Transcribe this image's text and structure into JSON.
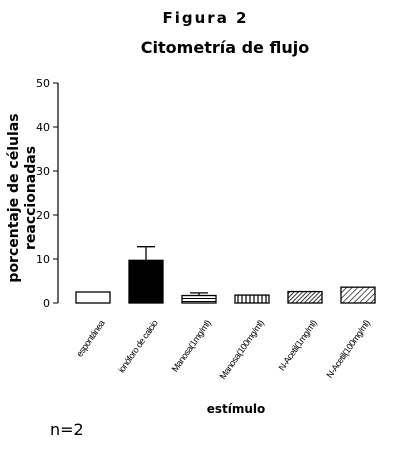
{
  "figure_label": "Figura 2",
  "footnote": "n=2",
  "chart_data": {
    "type": "bar",
    "title": "Citometría de flujo",
    "xlabel": "estímulo",
    "ylabel_lines": [
      "porcentaje de células",
      "reaccionadas"
    ],
    "ylim": [
      0,
      50
    ],
    "yticks": [
      0,
      10,
      20,
      30,
      40,
      50
    ],
    "grid": false,
    "categories": [
      "espontánea",
      "ionóforo de calcio",
      "Manosa(1mg/ml)",
      "Manosa(100mg/ml)",
      "N-Acetil(1mg/ml)",
      "N-Acetil(100mg/ml)"
    ],
    "values": [
      2.5,
      9.7,
      1.7,
      1.8,
      2.6,
      3.6
    ],
    "error_upper": [
      0,
      12.8,
      2.3,
      0,
      0,
      0
    ],
    "fills": [
      "white",
      "black",
      "hstripe",
      "vstripe",
      "diag-dense",
      "diag-sparse"
    ]
  }
}
